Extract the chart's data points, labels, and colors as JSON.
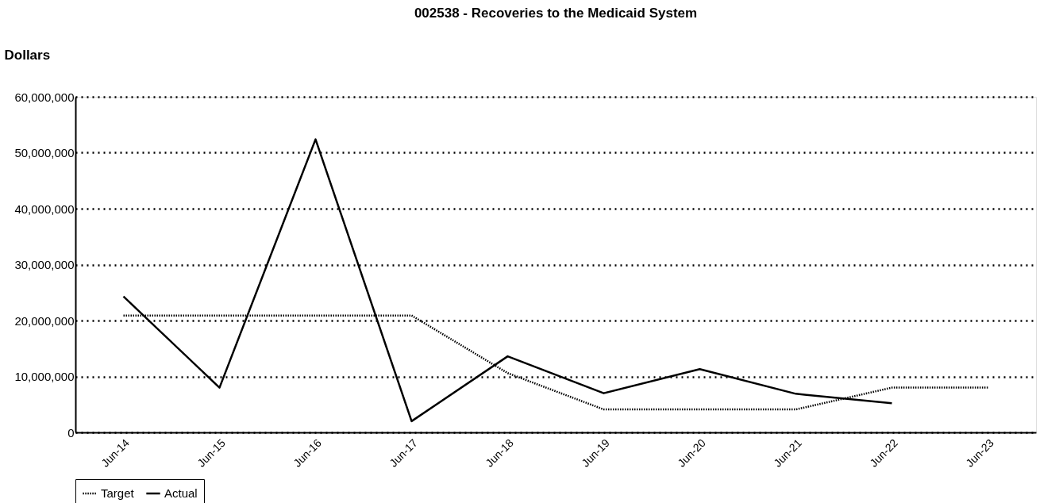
{
  "chart_data": {
    "type": "line",
    "title": "002538 - Recoveries to the Medicaid System",
    "ylabel": "Dollars",
    "categories": [
      "Jun-14",
      "Jun-15",
      "Jun-16",
      "Jun-17",
      "Jun-18",
      "Jun-19",
      "Jun-20",
      "Jun-21",
      "Jun-22",
      "Jun-23"
    ],
    "series": [
      {
        "name": "Target",
        "color": "#000000",
        "line_style": "dotted",
        "values": [
          20900000,
          20900000,
          20900000,
          20900000,
          10600000,
          4100000,
          4100000,
          4100000,
          8000000,
          8000000
        ]
      },
      {
        "name": "Actual",
        "color": "#000000",
        "line_style": "solid",
        "values": [
          24300000,
          8000000,
          52400000,
          2000000,
          13600000,
          7000000,
          11300000,
          6900000,
          5200000,
          null
        ]
      }
    ],
    "ylim": [
      0,
      60000000
    ],
    "yticks": [
      0,
      {
        "value": 10000000,
        "label": "10,000,000"
      },
      {
        "value": 20000000,
        "label": "20,000,000"
      },
      {
        "value": 30000000,
        "label": "30,000,000"
      },
      {
        "value": 40000000,
        "label": "40,000,000"
      },
      {
        "value": 50000000,
        "label": "50,000,000"
      },
      {
        "value": 60000000,
        "label": "60,000,000"
      }
    ],
    "grid": "y",
    "legend": "bottom",
    "marker": "none"
  }
}
